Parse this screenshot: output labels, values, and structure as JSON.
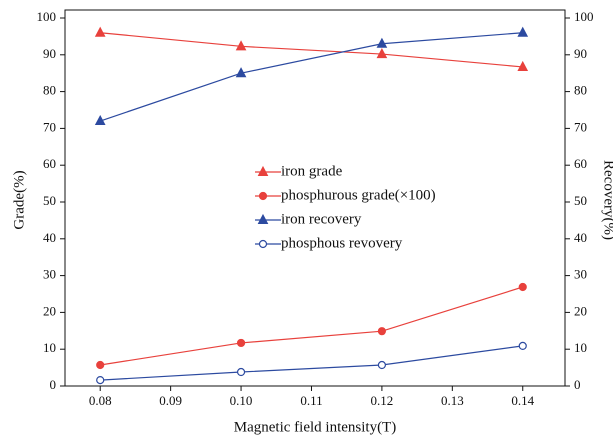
{
  "chart_data": {
    "type": "line",
    "x_label": "Magnetic field intensity(T)",
    "y_label": "Grade(%)",
    "y2_label": "Recovery(%)",
    "x": [
      0.08,
      0.1,
      0.12,
      0.14
    ],
    "xlim": [
      0.075,
      0.146
    ],
    "xticks": [
      0.08,
      0.09,
      {
        "value": 0.1,
        "label": "0.10"
      },
      0.11,
      0.12,
      0.13,
      0.14
    ],
    "ylim": [
      0,
      100
    ],
    "yticks": [
      0,
      10,
      20,
      30,
      40,
      50,
      60,
      70,
      80,
      90,
      100
    ],
    "y2lim": [
      0,
      100
    ],
    "y2ticks": [
      0,
      10,
      20,
      30,
      40,
      50,
      60,
      70,
      80,
      90,
      100
    ],
    "series": [
      {
        "name": "iron grade",
        "color": "#e8413c",
        "marker": "triangle",
        "filled": true,
        "values": [
          96,
          92.3,
          90.2,
          86.7
        ]
      },
      {
        "name": "phosphurous grade(×100)",
        "color": "#e8413c",
        "marker": "circle",
        "filled": true,
        "values": [
          5.7,
          11.7,
          14.9,
          26.9
        ]
      },
      {
        "name": "iron recovery",
        "color": "#2c4aa0",
        "marker": "triangle",
        "filled": true,
        "axis": "y2",
        "values": [
          72,
          85,
          93,
          96
        ]
      },
      {
        "name": "phosphous revovery",
        "color": "#2c4aa0",
        "marker": "circle",
        "filled": false,
        "axis": "y2",
        "values": [
          1.6,
          3.8,
          5.7,
          10.9
        ]
      }
    ]
  }
}
